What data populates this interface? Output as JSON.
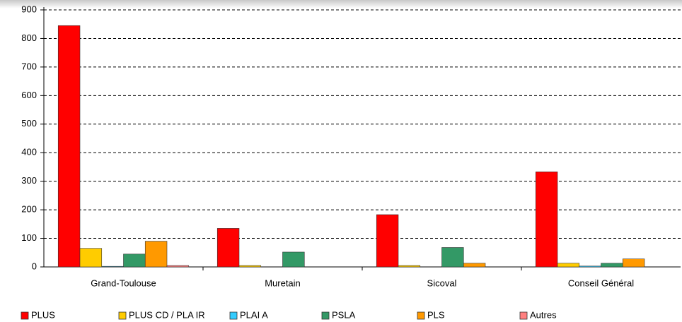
{
  "chart_data": {
    "type": "bar",
    "categories": [
      "Grand-Toulouse",
      "Muretain",
      "Sicoval",
      "Conseil Général"
    ],
    "series": [
      {
        "name": "PLUS",
        "color": "#ff0000",
        "values": [
          845,
          135,
          183,
          333
        ]
      },
      {
        "name": "PLUS CD / PLA IR",
        "color": "#ffcc00",
        "values": [
          65,
          5,
          5,
          13
        ]
      },
      {
        "name": "PLAI A",
        "color": "#33ccff",
        "values": [
          2,
          0,
          0,
          3
        ]
      },
      {
        "name": "PSLA",
        "color": "#339966",
        "values": [
          45,
          52,
          68,
          13
        ]
      },
      {
        "name": "PLS",
        "color": "#ff9900",
        "values": [
          90,
          0,
          13,
          28
        ]
      },
      {
        "name": "Autres",
        "color": "#ff8080",
        "values": [
          5,
          0,
          0,
          0
        ]
      }
    ],
    "ylim": [
      0,
      900
    ],
    "yticks": [
      0,
      100,
      200,
      300,
      400,
      500,
      600,
      700,
      800,
      900
    ],
    "grid": true,
    "legend": "bottom"
  }
}
